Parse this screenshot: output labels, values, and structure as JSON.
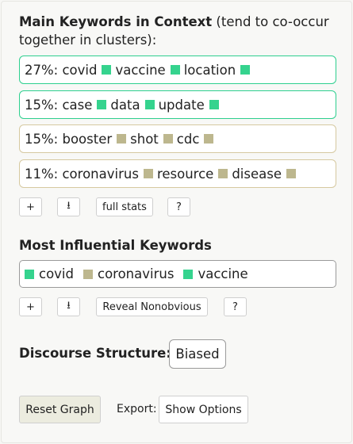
{
  "context_section": {
    "title_bold": "Main Keywords in Context",
    "title_note": " (tend to co-occur together in clusters):",
    "clusters": [
      {
        "percent": "27%:",
        "color": "#35d38e",
        "keywords": [
          "covid",
          "vaccine",
          "location"
        ]
      },
      {
        "percent": "15%:",
        "color": "#35d38e",
        "keywords": [
          "case",
          "data",
          "update"
        ]
      },
      {
        "percent": "15%:",
        "color": "#bdb78e",
        "keywords": [
          "booster",
          "shot",
          "cdc"
        ]
      },
      {
        "percent": "11%:",
        "color": "#bdb78e",
        "keywords": [
          "coronavirus",
          "resource",
          "disease"
        ]
      }
    ],
    "buttons": {
      "add": "+",
      "download": "⭳",
      "full_stats": "full stats",
      "help": "?"
    }
  },
  "influential_section": {
    "title": "Most Influential Keywords",
    "keywords": [
      {
        "label": "covid",
        "color": "#35d38e"
      },
      {
        "label": "coronavirus",
        "color": "#bdb78e"
      },
      {
        "label": "vaccine",
        "color": "#35d38e"
      }
    ],
    "buttons": {
      "add": "+",
      "download": "⭳",
      "reveal": "Reveal Nonobvious",
      "help": "?"
    }
  },
  "discourse": {
    "label": "Discourse Structure:",
    "value": "Biased"
  },
  "footer": {
    "reset": "Reset Graph",
    "export_label": "Export:",
    "show_options": "Show Options"
  }
}
